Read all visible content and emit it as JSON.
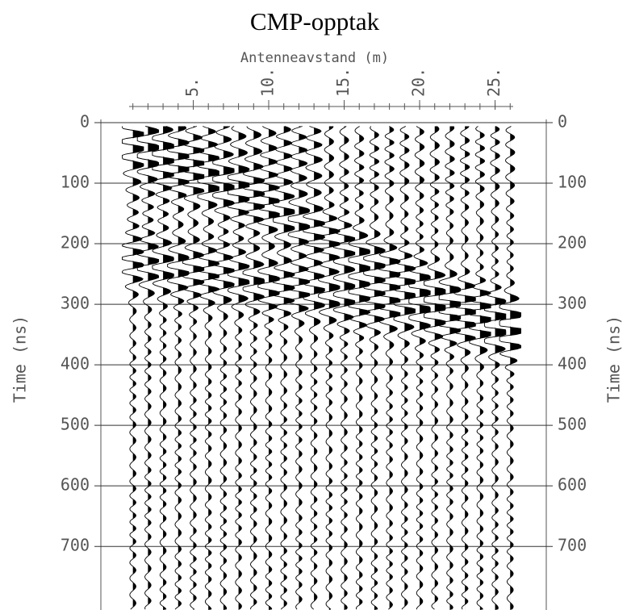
{
  "chart_data": {
    "type": "wiggle",
    "title": "CMP-opptak",
    "xlabel": "Antenneavstand (m)",
    "ylabel": "Time (ns)",
    "x": [
      1,
      2,
      3,
      4,
      5,
      6,
      7,
      8,
      9,
      10,
      11,
      12,
      13,
      14,
      15,
      16,
      17,
      18,
      19,
      20,
      21,
      22,
      23,
      24,
      25,
      26
    ],
    "xlim": [
      0.75,
      26.2
    ],
    "xticks": [
      {
        "value": 5,
        "label": "5."
      },
      {
        "value": 10,
        "label": "10."
      },
      {
        "value": 15,
        "label": "15."
      },
      {
        "value": 20,
        "label": "20."
      },
      {
        "value": 25,
        "label": "25."
      }
    ],
    "ylim": [
      0,
      805
    ],
    "yticks": [
      0,
      100,
      200,
      300,
      400,
      500,
      600,
      700
    ],
    "grid": true,
    "color": "#000000"
  }
}
